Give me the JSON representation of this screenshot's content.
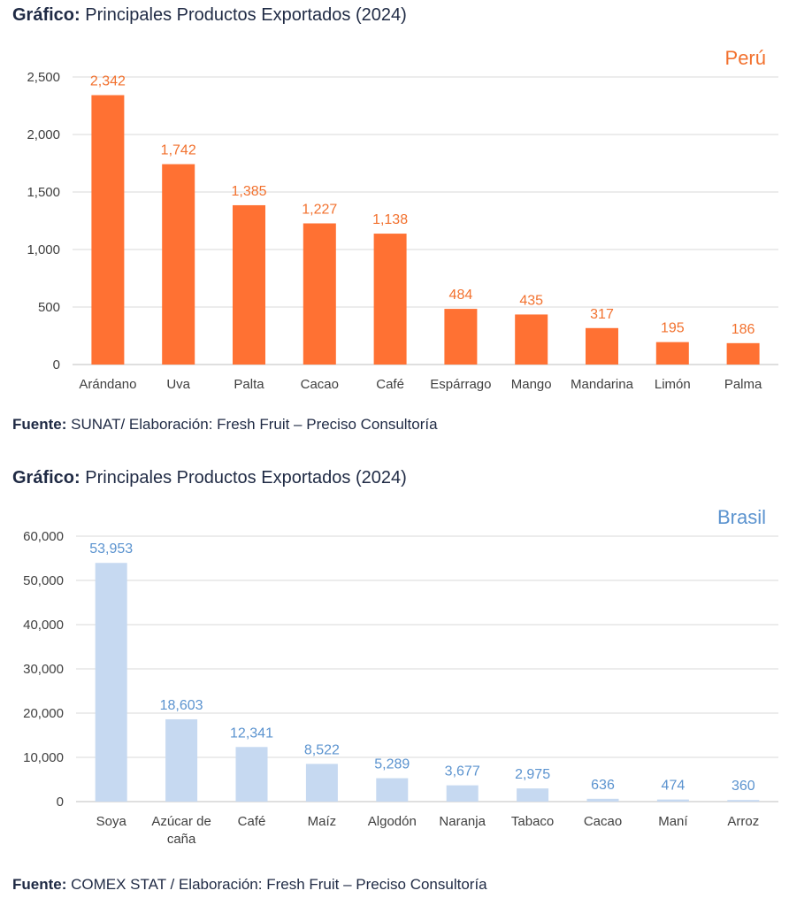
{
  "colors": {
    "peru_bar": "#ff7133",
    "peru_label": "#f2712e",
    "brasil_bar": "#c6d9f1",
    "brasil_label": "#5b93cf",
    "grid": "#d9d9d9",
    "text_dark": "#1f2a44"
  },
  "sections": [
    {
      "caption_bold": "Gráfico:",
      "caption_text": "Principales Productos Exportados (2024)",
      "source_bold": "Fuente:",
      "source_text": "SUNAT/ Elaboración: Fresh Fruit – Preciso Consultoría"
    },
    {
      "caption_bold": "Gráfico:",
      "caption_text": "Principales Productos Exportados (2024)",
      "source_bold": "Fuente:",
      "source_text": "COMEX STAT / Elaboración: Fresh Fruit – Preciso Consultoría"
    }
  ],
  "chart_data": [
    {
      "type": "bar",
      "title": "Perú",
      "categories": [
        "Arándano",
        "Uva",
        "Palta",
        "Cacao",
        "Café",
        "Espárrago",
        "Mango",
        "Mandarina",
        "Limón",
        "Palma"
      ],
      "values": [
        2342,
        1742,
        1385,
        1227,
        1138,
        484,
        435,
        317,
        195,
        186
      ],
      "value_labels": [
        "2,342",
        "1,742",
        "1,385",
        "1,227",
        "1,138",
        "484",
        "435",
        "317",
        "195",
        "186"
      ],
      "yticks": [
        0,
        500,
        1000,
        1500,
        2000,
        2500
      ],
      "ytick_labels": [
        "0",
        "500",
        "1,000",
        "1,500",
        "2,000",
        "2,500"
      ],
      "ylim": [
        0,
        2500
      ],
      "grid": true
    },
    {
      "type": "bar",
      "title": "Brasil",
      "categories": [
        "Soya",
        "Azúcar de caña",
        "Café",
        "Maíz",
        "Algodón",
        "Naranja",
        "Tabaco",
        "Cacao",
        "Maní",
        "Arroz"
      ],
      "category_lines": [
        [
          "Soya"
        ],
        [
          "Azúcar de",
          "caña"
        ],
        [
          "Café"
        ],
        [
          "Maíz"
        ],
        [
          "Algodón"
        ],
        [
          "Naranja"
        ],
        [
          "Tabaco"
        ],
        [
          "Cacao"
        ],
        [
          "Maní"
        ],
        [
          "Arroz"
        ]
      ],
      "values": [
        53953,
        18603,
        12341,
        8522,
        5289,
        3677,
        2975,
        636,
        474,
        360
      ],
      "value_labels": [
        "53,953",
        "18,603",
        "12,341",
        "8,522",
        "5,289",
        "3,677",
        "2,975",
        "636",
        "474",
        "360"
      ],
      "yticks": [
        0,
        10000,
        20000,
        30000,
        40000,
        50000,
        60000
      ],
      "ytick_labels": [
        "0",
        "10,000",
        "20,000",
        "30,000",
        "40,000",
        "50,000",
        "60,000"
      ],
      "ylim": [
        0,
        60000
      ],
      "grid": true
    }
  ]
}
